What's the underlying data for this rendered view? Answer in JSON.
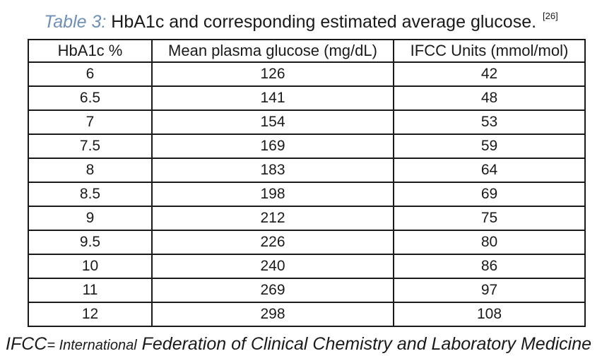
{
  "caption": {
    "label": "Table 3:",
    "text": "HbA1c and corresponding estimated average glucose.",
    "ref": "[26]"
  },
  "table": {
    "headers": [
      "HbA1c %",
      "Mean plasma glucose (mg/dL)",
      "IFCC Units (mmol/mol)"
    ],
    "rows": [
      [
        "6",
        "126",
        "42"
      ],
      [
        "6.5",
        "141",
        "48"
      ],
      [
        "7",
        "154",
        "53"
      ],
      [
        "7.5",
        "169",
        "59"
      ],
      [
        "8",
        "183",
        "64"
      ],
      [
        "8.5",
        "198",
        "69"
      ],
      [
        "9",
        "212",
        "75"
      ],
      [
        "9.5",
        "226",
        "80"
      ],
      [
        "10",
        "240",
        "86"
      ],
      [
        "11",
        "269",
        "97"
      ],
      [
        "12",
        "298",
        "108"
      ]
    ]
  },
  "footnote": {
    "abbr": "IFCC",
    "prefix": "= International",
    "rest": "Federation of Clinical Chemistry and Laboratory Medicine"
  }
}
